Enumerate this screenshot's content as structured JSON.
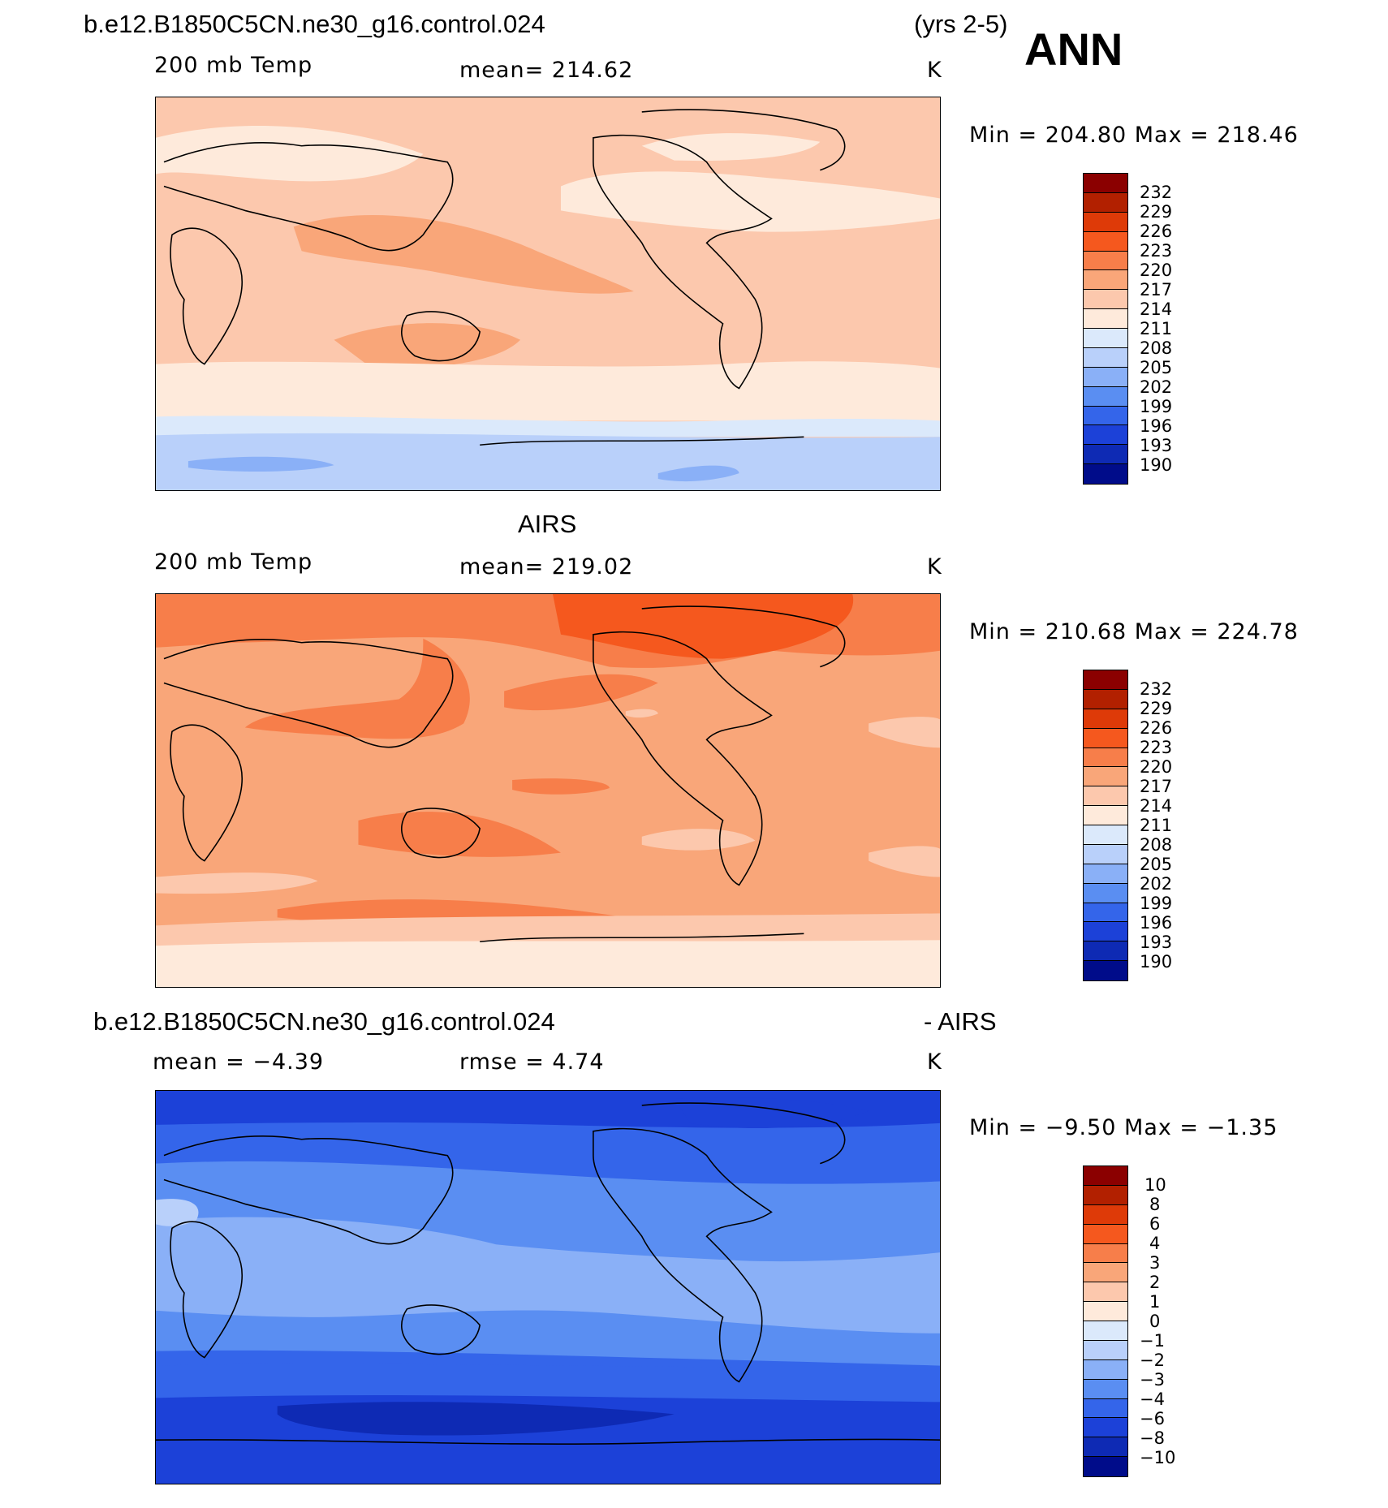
{
  "header": {
    "case_name": "b.e12.B1850C5CN.ne30_g16.control.024",
    "years": "(yrs 2-5)",
    "season": "ANN"
  },
  "panels": [
    {
      "title": "",
      "field": "200 mb Temp",
      "stat_text": "mean=  214.62",
      "units": "K",
      "minmax_text": "Min  =  204.80  Max  =  218.46",
      "levels": [
        "232",
        "229",
        "226",
        "223",
        "220",
        "217",
        "214",
        "211",
        "208",
        "205",
        "202",
        "199",
        "196",
        "193",
        "190"
      ]
    },
    {
      "title": "AIRS",
      "field": "200 mb Temp",
      "stat_text": "mean=  219.02",
      "units": "K",
      "minmax_text": "Min  =  210.68  Max  =  224.78",
      "levels": [
        "232",
        "229",
        "226",
        "223",
        "220",
        "217",
        "214",
        "211",
        "208",
        "205",
        "202",
        "199",
        "196",
        "193",
        "190"
      ]
    },
    {
      "title_left": "b.e12.B1850C5CN.ne30_g16.control.024",
      "title_right": "- AIRS",
      "mean_text": "mean  =     −4.39",
      "rmse_text": "rmse  =      4.74",
      "units": "K",
      "minmax_text": "Min  =    −9.50  Max  =    −1.35",
      "levels": [
        "10",
        "8",
        "6",
        "4",
        "3",
        "2",
        "1",
        "0",
        "−1",
        "−2",
        "−3",
        "−4",
        "−6",
        "−8",
        "−10"
      ]
    }
  ],
  "colorbar_colors": [
    "#8b0000",
    "#b22000",
    "#de3a08",
    "#f5581e",
    "#f77e4a",
    "#f9a679",
    "#fcc8ad",
    "#feeadb",
    "#dbe9fb",
    "#b9d0fa",
    "#8ab0f7",
    "#5a8ef2",
    "#3465ea",
    "#1c41d8",
    "#0e2ab4",
    "#000c8a"
  ]
}
